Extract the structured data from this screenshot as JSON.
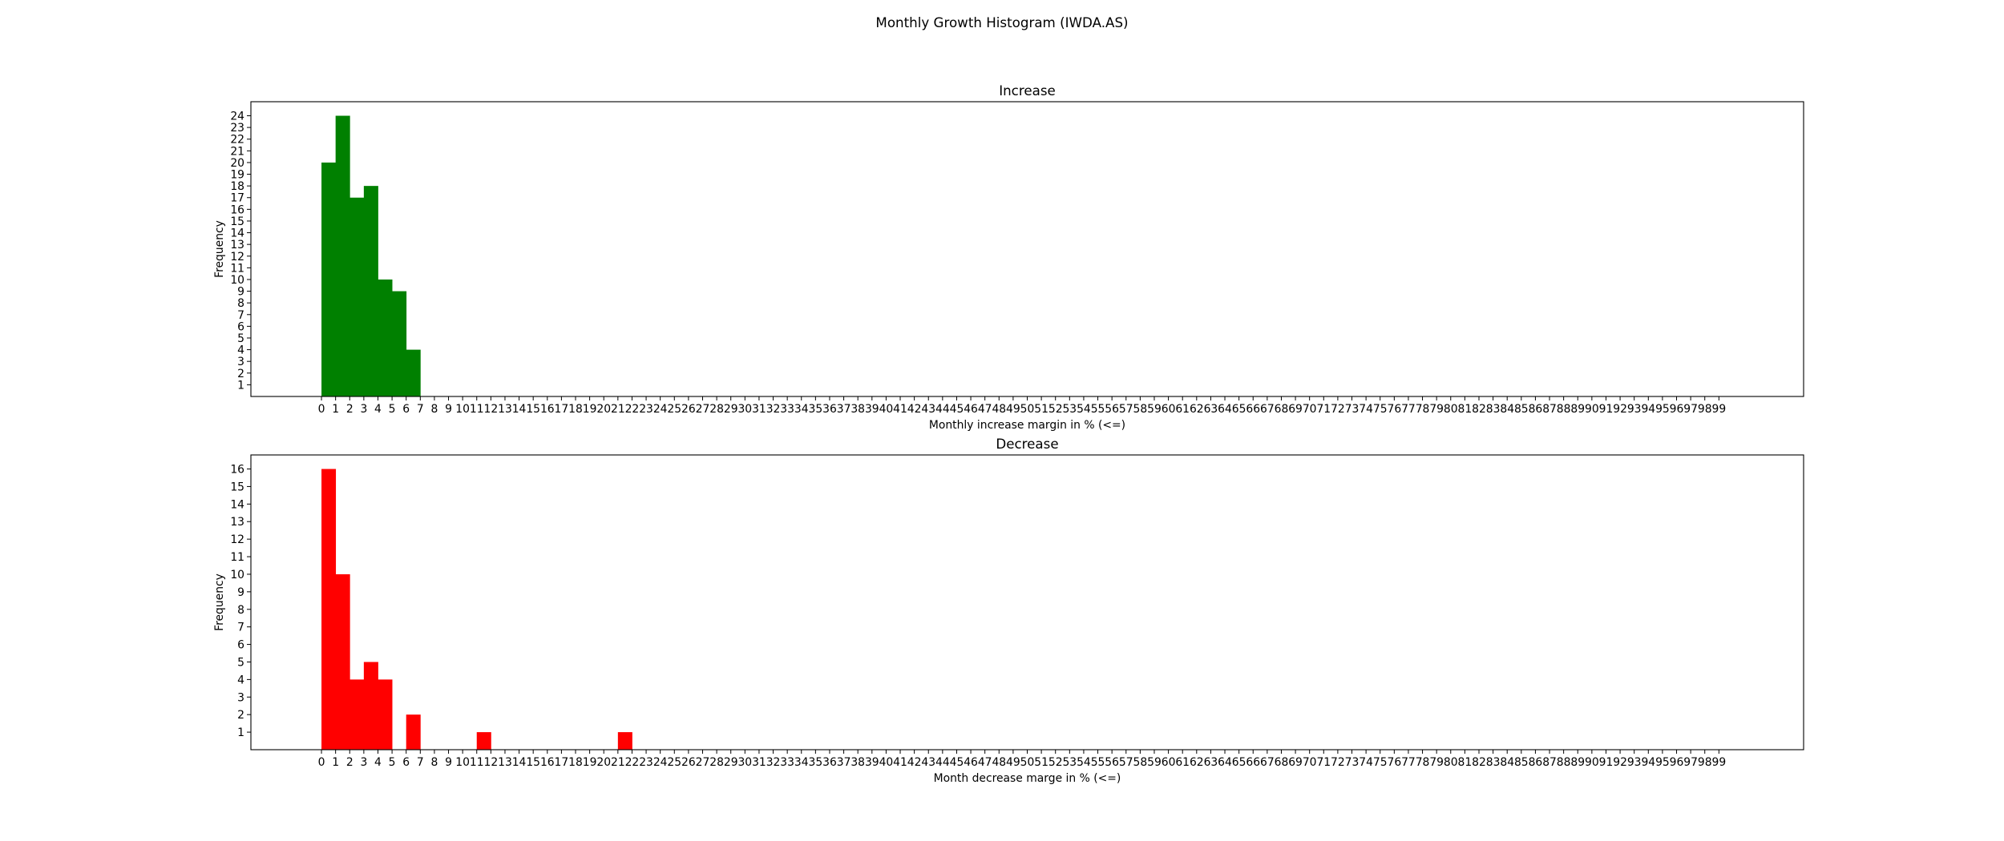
{
  "figure": {
    "suptitle": "Monthly Growth Histogram (IWDA.AS)"
  },
  "chart_data": [
    {
      "type": "bar",
      "title": "Increase",
      "xlabel": "Monthly increase margin in % (<=)",
      "ylabel": "Frequency",
      "color": "#008000",
      "x_ticks": [
        0,
        1,
        2,
        3,
        4,
        5,
        6,
        7,
        8,
        9,
        10,
        11,
        12,
        13,
        14,
        15,
        16,
        17,
        18,
        19,
        20,
        21,
        22,
        23,
        24,
        25,
        26,
        27,
        28,
        29,
        30,
        31,
        32,
        33,
        34,
        35,
        36,
        37,
        38,
        39,
        40,
        41,
        42,
        43,
        44,
        45,
        46,
        47,
        48,
        49,
        50,
        51,
        52,
        53,
        54,
        55,
        56,
        57,
        58,
        59,
        60,
        61,
        62,
        63,
        64,
        65,
        66,
        67,
        68,
        69,
        70,
        71,
        72,
        73,
        74,
        75,
        76,
        77,
        78,
        79,
        80,
        81,
        82,
        83,
        84,
        85,
        86,
        87,
        88,
        89,
        90,
        91,
        92,
        93,
        94,
        95,
        96,
        97,
        98,
        99
      ],
      "y_ticks": [
        1,
        2,
        3,
        4,
        5,
        6,
        7,
        8,
        9,
        10,
        11,
        12,
        13,
        14,
        15,
        16,
        17,
        18,
        19,
        20,
        21,
        22,
        23,
        24
      ],
      "xlim": [
        -5,
        105
      ],
      "ylim": [
        0,
        25.2
      ],
      "bars": [
        {
          "x": 0,
          "value": 20
        },
        {
          "x": 1,
          "value": 24
        },
        {
          "x": 2,
          "value": 17
        },
        {
          "x": 3,
          "value": 18
        },
        {
          "x": 4,
          "value": 10
        },
        {
          "x": 5,
          "value": 9
        },
        {
          "x": 6,
          "value": 4
        }
      ]
    },
    {
      "type": "bar",
      "title": "Decrease",
      "xlabel": "Month decrease marge in % (<=)",
      "ylabel": "Frequency",
      "color": "#ff0000",
      "x_ticks": [
        0,
        1,
        2,
        3,
        4,
        5,
        6,
        7,
        8,
        9,
        10,
        11,
        12,
        13,
        14,
        15,
        16,
        17,
        18,
        19,
        20,
        21,
        22,
        23,
        24,
        25,
        26,
        27,
        28,
        29,
        30,
        31,
        32,
        33,
        34,
        35,
        36,
        37,
        38,
        39,
        40,
        41,
        42,
        43,
        44,
        45,
        46,
        47,
        48,
        49,
        50,
        51,
        52,
        53,
        54,
        55,
        56,
        57,
        58,
        59,
        60,
        61,
        62,
        63,
        64,
        65,
        66,
        67,
        68,
        69,
        70,
        71,
        72,
        73,
        74,
        75,
        76,
        77,
        78,
        79,
        80,
        81,
        82,
        83,
        84,
        85,
        86,
        87,
        88,
        89,
        90,
        91,
        92,
        93,
        94,
        95,
        96,
        97,
        98,
        99
      ],
      "y_ticks": [
        1,
        2,
        3,
        4,
        5,
        6,
        7,
        8,
        9,
        10,
        11,
        12,
        13,
        14,
        15,
        16
      ],
      "xlim": [
        -5,
        105
      ],
      "ylim": [
        0,
        16.8
      ],
      "bars": [
        {
          "x": 0,
          "value": 16
        },
        {
          "x": 1,
          "value": 10
        },
        {
          "x": 2,
          "value": 4
        },
        {
          "x": 3,
          "value": 5
        },
        {
          "x": 4,
          "value": 4
        },
        {
          "x": 6,
          "value": 2
        },
        {
          "x": 11,
          "value": 1
        },
        {
          "x": 21,
          "value": 1
        }
      ]
    }
  ]
}
